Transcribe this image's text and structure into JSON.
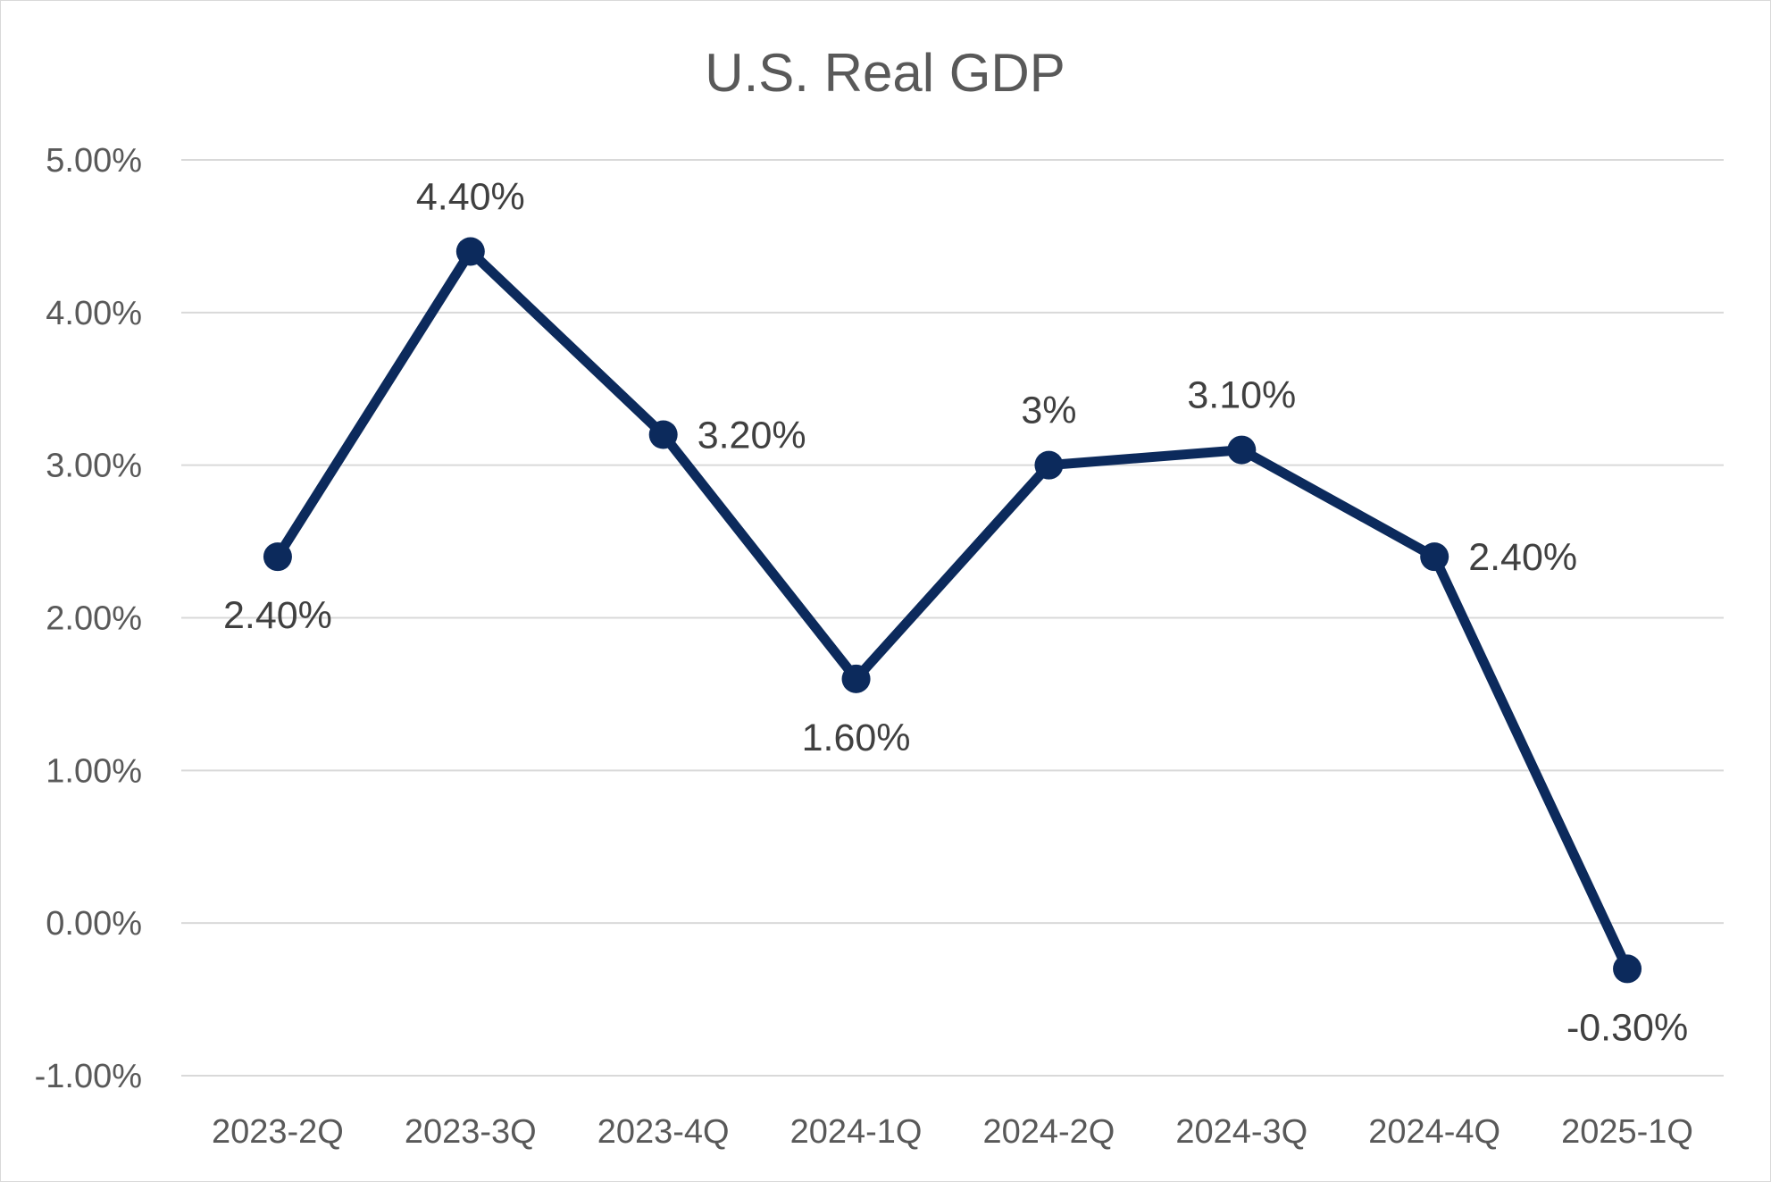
{
  "chart_data": {
    "type": "line",
    "title": "U.S. Real GDP",
    "xlabel": "",
    "ylabel": "",
    "categories": [
      "2023-2Q",
      "2023-3Q",
      "2023-4Q",
      "2024-1Q",
      "2024-2Q",
      "2024-3Q",
      "2024-4Q",
      "2025-1Q"
    ],
    "series": [
      {
        "values": [
          2.4,
          4.4,
          3.2,
          1.6,
          3.0,
          3.1,
          2.4,
          -0.3
        ],
        "data_labels": [
          "2.40%",
          "4.40%",
          "3.20%",
          "1.60%",
          "3%",
          "3.10%",
          "2.40%",
          "-0.30%"
        ],
        "label_positions": [
          "below",
          "above",
          "right",
          "below",
          "above",
          "above",
          "right",
          "below"
        ],
        "color": "#0c2a5c"
      }
    ],
    "ylim": [
      -1,
      5
    ],
    "yticks": [
      5,
      4,
      3,
      2,
      1,
      0,
      -1
    ],
    "ytick_labels": [
      "5.00%",
      "4.00%",
      "3.00%",
      "2.00%",
      "1.00%",
      "0.00%",
      "-1.00%"
    ],
    "grid": true,
    "legend": "none"
  }
}
